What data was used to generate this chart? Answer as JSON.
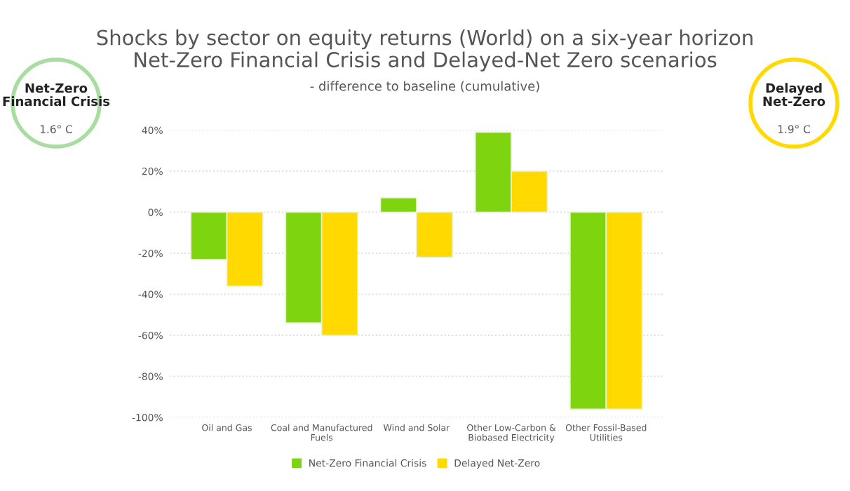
{
  "chart_data": {
    "type": "bar",
    "title": "Shocks by sector on equity returns (World) on a six-year horizon\nNet-Zero Financial Crisis and Delayed-Net Zero scenarios",
    "subtitle": "- difference to baseline (cumulative)",
    "categories": [
      "Oil and Gas",
      "Coal and Manufactured\nFuels",
      "Wind and Solar",
      "Other Low-Carbon &\nBiobased Electricity",
      "Other Fossil-Based\nUtilities"
    ],
    "series": [
      {
        "name": "Net-Zero Financial Crisis",
        "color": "#7ed40f",
        "values": [
          -23,
          -54,
          7,
          39,
          -96
        ]
      },
      {
        "name": "Delayed Net-Zero",
        "color": "#ffd900",
        "values": [
          -36,
          -60,
          -22,
          20,
          -96
        ]
      }
    ],
    "ylim": [
      -100,
      40
    ],
    "yticks": [
      {
        "value": -100,
        "label": "-100%"
      },
      {
        "value": -80,
        "label": "-80%"
      },
      {
        "value": -60,
        "label": "-60%"
      },
      {
        "value": -40,
        "label": "-40%"
      },
      {
        "value": -20,
        "label": "-20%"
      },
      {
        "value": 0,
        "label": "0%"
      },
      {
        "value": 20,
        "label": "20%"
      },
      {
        "value": 40,
        "label": "40%"
      }
    ],
    "grid": "y",
    "legend": "bottom",
    "annotations": [
      "Net-Zero\nFinancial Crisis",
      "1.6° C",
      "Delayed\nNet-Zero",
      "1.9° C"
    ]
  }
}
